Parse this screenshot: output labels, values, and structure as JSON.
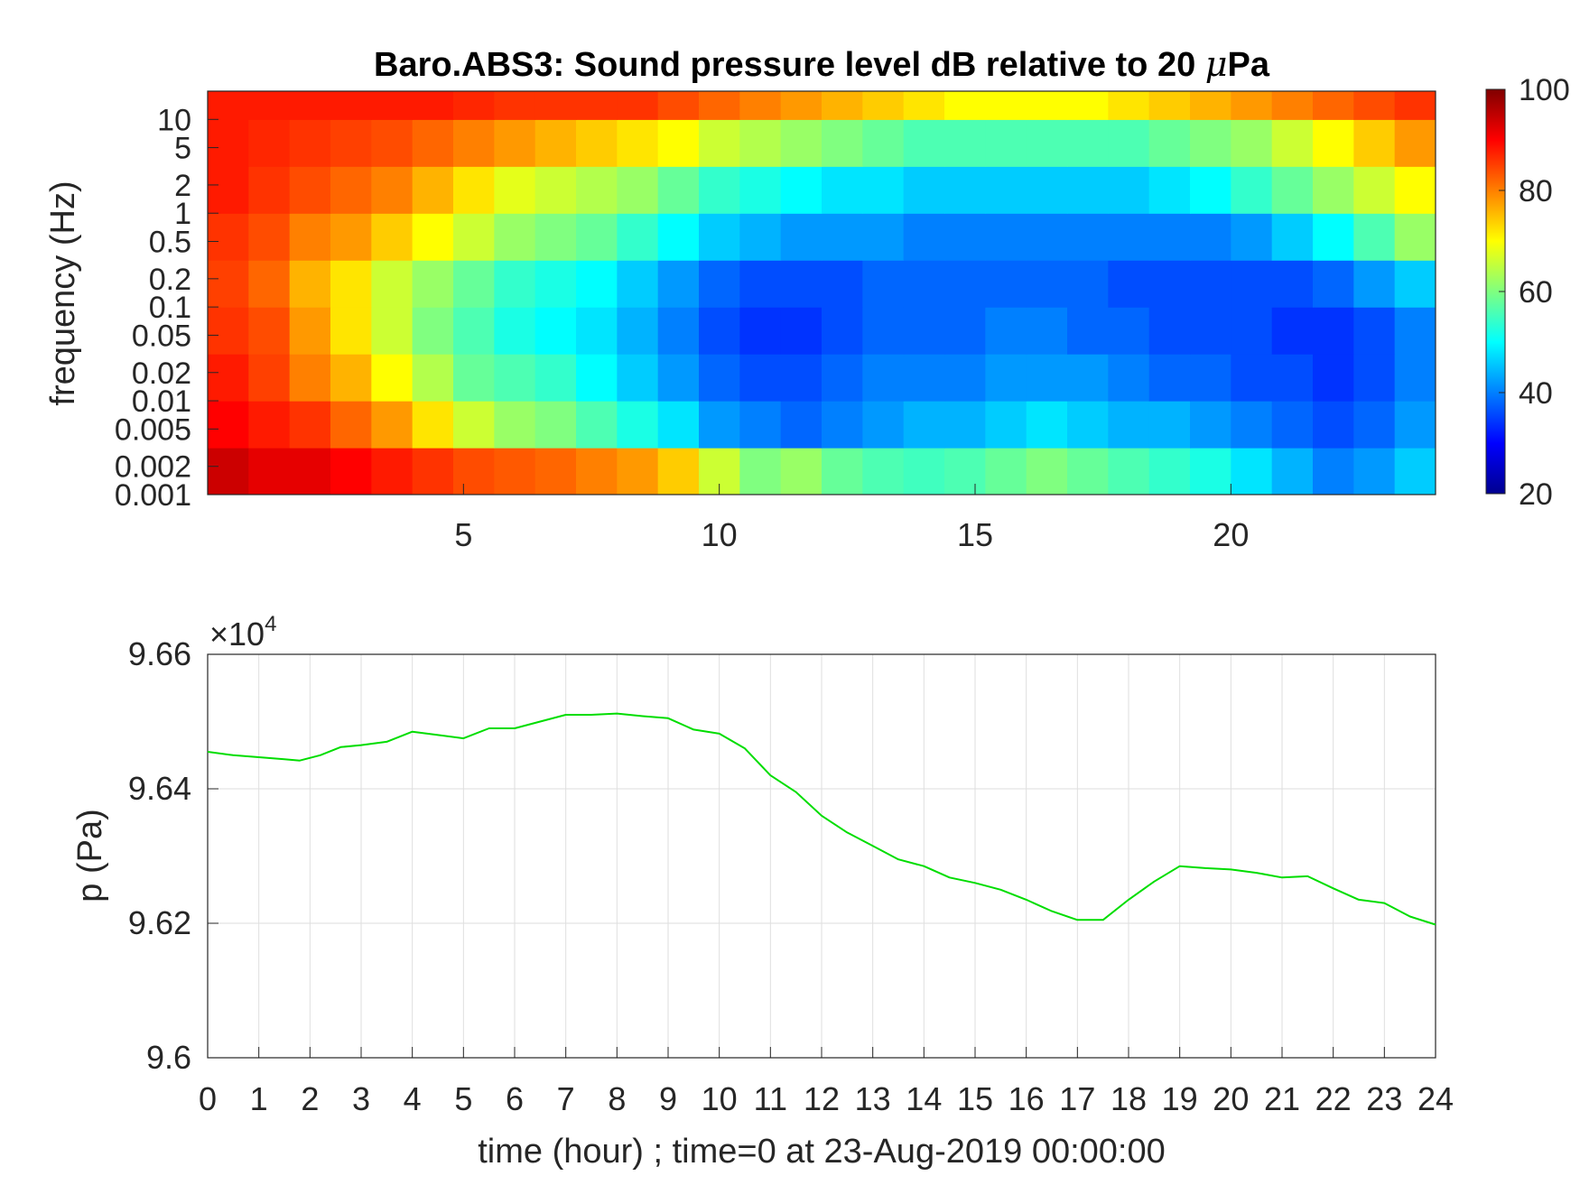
{
  "chart_data": [
    {
      "type": "heatmap",
      "title": "Baro.ABS3: Sound pressure level dB relative to 20 μPa",
      "title_prefix": "Baro.ABS3: Sound pressure level dB relative to 20 ",
      "title_mu": "μ",
      "title_suffix": "Pa",
      "xlabel": "",
      "ylabel": "frequency (Hz)",
      "xlim": [
        0,
        24
      ],
      "xticks": [
        "5",
        "10",
        "15",
        "20"
      ],
      "yscale": "log",
      "ylim": [
        0.001,
        20
      ],
      "yticks": [
        "0.001",
        "0.002",
        "0.005",
        "0.01",
        "0.02",
        "0.05",
        "0.1",
        "0.2",
        "0.5",
        "1",
        "2",
        "5",
        "10"
      ],
      "colormap": "jet",
      "clim": [
        20,
        100
      ],
      "colorbar_ticks": [
        "20",
        "40",
        "60",
        "80",
        "100"
      ],
      "x_hours": [
        0,
        1,
        2,
        3,
        4,
        5,
        6,
        7,
        8,
        9,
        10,
        11,
        12,
        13,
        14,
        15,
        16,
        17,
        18,
        19,
        20,
        21,
        22,
        23,
        24
      ],
      "log10_freq_bands": [
        -3.0,
        -2.5,
        -2.0,
        -1.5,
        -1.0,
        -0.5,
        0.0,
        0.5,
        1.0,
        1.3
      ],
      "db_grid": [
        [
          94,
          92,
          92,
          90,
          88,
          86,
          84,
          83,
          82,
          80,
          78,
          74,
          66,
          60,
          62,
          58,
          56,
          55,
          56,
          58,
          60,
          58,
          56,
          54,
          52,
          48,
          44,
          40,
          42,
          46
        ],
        [
          90,
          88,
          86,
          82,
          78,
          72,
          66,
          62,
          60,
          56,
          52,
          48,
          42,
          40,
          38,
          40,
          42,
          44,
          44,
          46,
          48,
          46,
          44,
          44,
          42,
          40,
          38,
          36,
          38,
          42
        ],
        [
          88,
          85,
          80,
          76,
          70,
          64,
          58,
          56,
          54,
          50,
          46,
          42,
          38,
          36,
          36,
          38,
          40,
          40,
          40,
          42,
          42,
          42,
          40,
          38,
          38,
          36,
          36,
          34,
          36,
          40
        ],
        [
          86,
          84,
          78,
          72,
          66,
          60,
          56,
          52,
          50,
          48,
          44,
          40,
          36,
          34,
          34,
          36,
          38,
          38,
          38,
          40,
          40,
          38,
          38,
          36,
          36,
          36,
          34,
          34,
          36,
          40
        ],
        [
          85,
          82,
          76,
          72,
          66,
          62,
          58,
          54,
          52,
          50,
          46,
          42,
          38,
          36,
          36,
          36,
          38,
          38,
          38,
          38,
          38,
          38,
          36,
          36,
          36,
          36,
          36,
          38,
          42,
          46
        ],
        [
          86,
          84,
          80,
          78,
          74,
          70,
          66,
          62,
          60,
          58,
          54,
          50,
          46,
          44,
          42,
          42,
          42,
          40,
          40,
          40,
          40,
          40,
          40,
          40,
          40,
          42,
          46,
          50,
          56,
          62
        ],
        [
          88,
          86,
          84,
          82,
          80,
          76,
          72,
          68,
          66,
          64,
          62,
          58,
          54,
          52,
          50,
          48,
          48,
          46,
          46,
          46,
          46,
          46,
          46,
          48,
          50,
          54,
          58,
          62,
          66,
          70
        ],
        [
          88,
          87,
          86,
          85,
          84,
          82,
          80,
          78,
          76,
          74,
          72,
          70,
          66,
          64,
          62,
          60,
          58,
          56,
          56,
          56,
          56,
          56,
          56,
          58,
          60,
          62,
          66,
          70,
          74,
          78
        ],
        [
          88,
          88,
          88,
          88,
          88,
          88,
          87,
          86,
          86,
          86,
          86,
          84,
          82,
          80,
          78,
          76,
          74,
          72,
          70,
          70,
          70,
          70,
          72,
          74,
          76,
          78,
          80,
          82,
          84,
          86
        ]
      ]
    },
    {
      "type": "line",
      "title": "",
      "xlabel": "time (hour) ; time=0 at 23-Aug-2019 00:00:00",
      "ylabel": "p (Pa)",
      "xlim": [
        0,
        24
      ],
      "ylim": [
        96000,
        96600
      ],
      "x_ticks": [
        "0",
        "1",
        "2",
        "3",
        "4",
        "5",
        "6",
        "7",
        "8",
        "9",
        "10",
        "11",
        "12",
        "13",
        "14",
        "15",
        "16",
        "17",
        "18",
        "19",
        "20",
        "21",
        "22",
        "23",
        "24"
      ],
      "y_ticks": [
        "9.6",
        "9.62",
        "9.64",
        "9.66"
      ],
      "exponent_label_base": "×10",
      "exponent_label_power": "4",
      "grid": true,
      "line_color": "#00dd00",
      "x": [
        0,
        0.5,
        1,
        1.5,
        1.8,
        2.2,
        2.6,
        3,
        3.5,
        4,
        4.5,
        5,
        5.5,
        6,
        6.5,
        7,
        7.5,
        8,
        8.5,
        9,
        9.5,
        10,
        10.5,
        11,
        11.5,
        12,
        12.5,
        13,
        13.5,
        14,
        14.5,
        15,
        15.5,
        16,
        16.5,
        17,
        17.5,
        18,
        18.5,
        19,
        19.5,
        20,
        20.5,
        21,
        21.5,
        22,
        22.5,
        23,
        23.5,
        24
      ],
      "y": [
        96455,
        96450,
        96447,
        96444,
        96442,
        96450,
        96462,
        96465,
        96470,
        96485,
        96480,
        96475,
        96490,
        96490,
        96500,
        96510,
        96510,
        96512,
        96508,
        96505,
        96488,
        96482,
        96460,
        96420,
        96395,
        96360,
        96335,
        96315,
        96295,
        96285,
        96268,
        96260,
        96250,
        96235,
        96218,
        96205,
        96205,
        96235,
        96262,
        96285,
        96282,
        96280,
        96275,
        96268,
        96270,
        96252,
        96235,
        96230,
        96210,
        96198
      ]
    }
  ],
  "colors": {
    "axes": "#262626",
    "grid": "#dedede",
    "line": "#00dd00"
  }
}
